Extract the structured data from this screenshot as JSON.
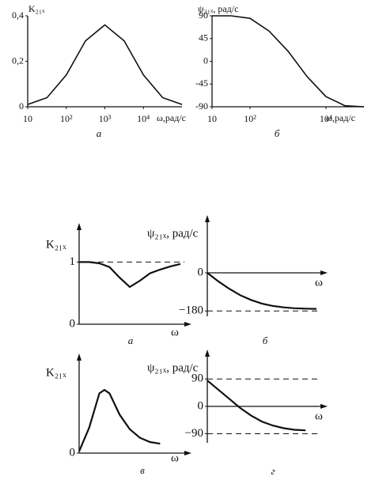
{
  "chart_data": [
    {
      "type": "line",
      "y_label": "K₂₁ₓ",
      "x_label": "ω,рад/с",
      "caption": "а",
      "xscale": "log",
      "xlim": [
        10,
        100000
      ],
      "ylim": [
        0,
        0.4
      ],
      "xticks": [
        10,
        {
          "value": 100,
          "label": "10²"
        },
        {
          "value": 1000,
          "label": "10³"
        },
        {
          "value": 10000,
          "label": "10⁴"
        }
      ],
      "yticks": [
        0,
        {
          "value": 0.2,
          "label": "0,2"
        },
        {
          "value": 0.4,
          "label": "0,4"
        }
      ],
      "x": [
        10,
        31.6,
        100,
        316,
        1000,
        3162,
        10000,
        31623,
        100000
      ],
      "values": [
        0.01,
        0.04,
        0.14,
        0.29,
        0.36,
        0.29,
        0.14,
        0.04,
        0.01
      ]
    },
    {
      "type": "line",
      "y_label": "ψ₂₁ₓ, рад/с",
      "x_label": "ω,рад/с",
      "caption": "б",
      "xscale": "log",
      "xlim": [
        10,
        100000
      ],
      "ylim": [
        -90,
        90
      ],
      "xticks": [
        10,
        {
          "value": 100,
          "label": "10²"
        },
        {
          "value": 10000,
          "label": "10⁴"
        }
      ],
      "yticks": [
        90,
        45,
        0,
        -45,
        -90
      ],
      "x": [
        10,
        31.6,
        100,
        316,
        1000,
        3162,
        10000,
        31623,
        100000
      ],
      "values": [
        90,
        90,
        85,
        60,
        20,
        -30,
        -70,
        -88,
        -90
      ]
    },
    {
      "type": "line",
      "y_label": "K₂₁ₓ",
      "x_label": "ω",
      "caption": "а",
      "xlim": [
        0,
        10
      ],
      "ylim": [
        0,
        1.4
      ],
      "yticks": [
        0,
        1
      ],
      "hlines": [
        1
      ],
      "x": [
        0,
        1,
        2,
        3,
        4,
        5,
        6,
        7,
        8,
        9,
        10
      ],
      "values": [
        1,
        1,
        0.98,
        0.92,
        0.75,
        0.6,
        0.7,
        0.82,
        0.88,
        0.93,
        0.97
      ]
    },
    {
      "type": "line",
      "y_label": "ψ₂₁ₓ, рад/с",
      "x_label": "ω",
      "caption": "б",
      "xlim": [
        0,
        10
      ],
      "ylim": [
        -205,
        205
      ],
      "yticks": [
        0,
        {
          "value": -180,
          "label": "−180"
        }
      ],
      "hlines": [
        -180
      ],
      "x": [
        0,
        1,
        2,
        3,
        4,
        5,
        6,
        7,
        8,
        9,
        10
      ],
      "values": [
        0,
        -40,
        -75,
        -105,
        -128,
        -145,
        -156,
        -163,
        -167,
        -169,
        -170
      ]
    },
    {
      "type": "line",
      "y_label": "K₂₁ₓ",
      "x_label": "ω",
      "caption": "в",
      "xlim": [
        0,
        10
      ],
      "ylim": [
        0,
        1
      ],
      "yticks": [
        0
      ],
      "x": [
        0,
        1,
        2,
        2.5,
        3,
        4,
        5,
        6,
        7,
        8
      ],
      "values": [
        0.02,
        0.3,
        0.7,
        0.74,
        0.7,
        0.45,
        0.28,
        0.18,
        0.13,
        0.11
      ]
    },
    {
      "type": "line",
      "y_label": "ψ₂₁ₓ, рад/с",
      "x_label": "ω",
      "caption": "г",
      "xlim": [
        0,
        10
      ],
      "ylim": [
        -120,
        140
      ],
      "yticks": [
        90,
        0,
        {
          "value": -90,
          "label": "−90"
        }
      ],
      "hlines": [
        90,
        -90
      ],
      "x": [
        0,
        1,
        2,
        3,
        4,
        5,
        6,
        7,
        8,
        9
      ],
      "values": [
        85,
        55,
        25,
        -5,
        -30,
        -50,
        -63,
        -72,
        -77,
        -79
      ]
    }
  ]
}
